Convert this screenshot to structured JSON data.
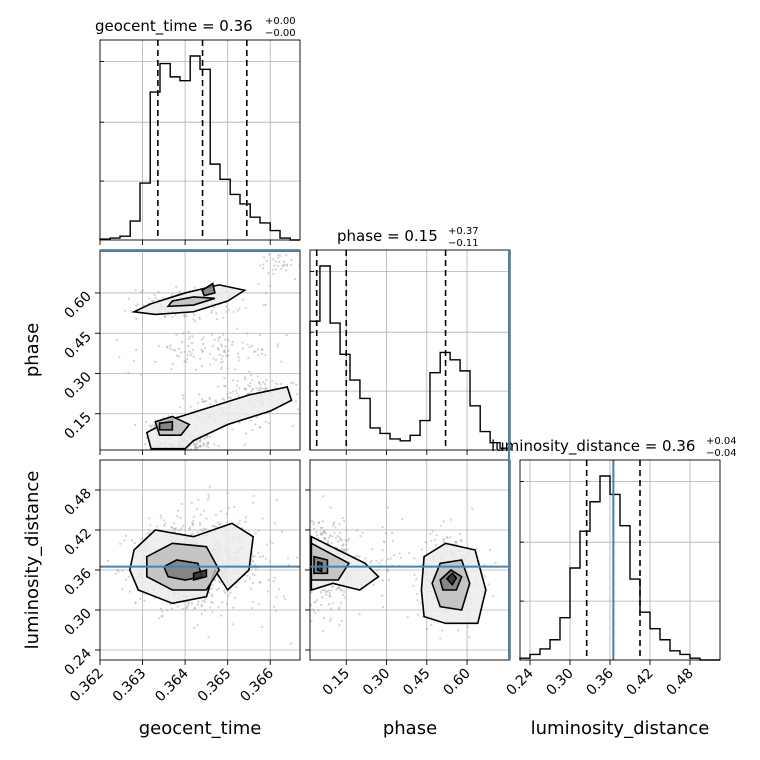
{
  "chart_data": {
    "type": "corner",
    "colors": {
      "truth": "#4682b4",
      "line": "#000000",
      "grid": "#b0b0b0"
    },
    "parameters": [
      {
        "name": "geocent_time",
        "label": "geocent_time",
        "median": "0.36",
        "err_plus": "+0.00",
        "err_minus": "−0.00",
        "range": [
          0.362,
          0.3667
        ]
      },
      {
        "name": "phase",
        "label": "phase",
        "median": "0.15",
        "err_plus": "+0.37",
        "err_minus": "−0.11",
        "range": [
          0.015,
          0.76
        ]
      },
      {
        "name": "luminosity_distance",
        "label": "luminosity_distance",
        "median": "0.36",
        "err_plus": "+0.04",
        "err_minus": "−0.04",
        "range": [
          0.225,
          0.525
        ],
        "truth": 0.365
      }
    ],
    "titles": [
      {
        "param": "geocent_time",
        "main": "geocent_time = 0.36",
        "sup": "+0.00",
        "sub": "−0.00"
      },
      {
        "param": "phase",
        "main": "phase = 0.15",
        "sup": "+0.37",
        "sub": "−0.11"
      },
      {
        "param": "luminosity_distance",
        "main": "luminosity_distance = 0.36",
        "sup": "+0.04",
        "sub": "−0.04"
      }
    ],
    "ticks": {
      "geocent_time": {
        "values": [
          0.362,
          0.363,
          0.364,
          0.365,
          0.366
        ],
        "labels": [
          "0.362",
          "0.363",
          "0.364",
          "0.365",
          "0.366"
        ]
      },
      "phase": {
        "values": [
          0.15,
          0.3,
          0.45,
          0.6
        ],
        "labels": [
          "0.15",
          "0.30",
          "0.45",
          "0.60"
        ]
      },
      "luminosity_distance": {
        "values": [
          0.24,
          0.3,
          0.36,
          0.42,
          0.48
        ],
        "labels": [
          "0.24",
          "0.30",
          "0.36",
          "0.42",
          "0.48"
        ]
      }
    },
    "histograms": [
      {
        "param": "geocent_time",
        "bin_edges": [
          0.362,
          0.36224,
          0.36247,
          0.36271,
          0.36294,
          0.36318,
          0.36341,
          0.36365,
          0.36388,
          0.36412,
          0.36435,
          0.36459,
          0.36482,
          0.36506,
          0.36529,
          0.36553,
          0.36576,
          0.366,
          0.36623,
          0.36647,
          0.3667
        ],
        "counts": [
          0.5,
          1,
          2,
          10,
          30,
          78,
          93,
          86,
          84,
          97,
          90,
          40,
          32,
          24,
          19,
          12,
          9,
          5,
          1,
          0
        ],
        "quantiles": [
          0.36336,
          0.36441,
          0.36545
        ]
      },
      {
        "param": "phase",
        "bin_edges": [
          0.015,
          0.052,
          0.09,
          0.127,
          0.164,
          0.201,
          0.239,
          0.276,
          0.313,
          0.351,
          0.388,
          0.425,
          0.462,
          0.5,
          0.537,
          0.574,
          0.611,
          0.649,
          0.686,
          0.723,
          0.76
        ],
        "counts": [
          70,
          100,
          69,
          52,
          38,
          28,
          12,
          9,
          6,
          5,
          8,
          16,
          42,
          53,
          49,
          43,
          24,
          10,
          4,
          1
        ],
        "quantiles": [
          0.04,
          0.15,
          0.52
        ]
      },
      {
        "param": "luminosity_distance",
        "bin_edges": [
          0.225,
          0.24,
          0.255,
          0.27,
          0.285,
          0.3,
          0.315,
          0.33,
          0.345,
          0.36,
          0.375,
          0.39,
          0.405,
          0.42,
          0.435,
          0.45,
          0.465,
          0.48,
          0.495,
          0.51,
          0.525
        ],
        "counts": [
          1,
          3,
          6,
          11,
          23,
          50,
          70,
          86,
          100,
          90,
          73,
          44,
          26,
          17,
          11,
          5,
          3,
          1,
          0,
          0
        ],
        "quantiles": [
          0.325,
          0.365,
          0.405
        ]
      }
    ],
    "scatter_2d": [
      {
        "x": "geocent_time",
        "y": "phase",
        "samples": [
          {
            "center": [
              0.36355,
              0.1
            ],
            "spread": [
              0.00018,
              0.018
            ],
            "n": 150
          },
          {
            "center": [
              0.36395,
              0.035
            ],
            "spread": [
              0.00035,
              0.025
            ],
            "n": 170
          },
          {
            "center": [
              0.36485,
              0.15
            ],
            "spread": [
              0.0006,
              0.04
            ],
            "n": 120
          },
          {
            "center": [
              0.36575,
              0.23
            ],
            "spread": [
              0.0005,
              0.03
            ],
            "n": 90
          },
          {
            "center": [
              0.3641,
              0.56
            ],
            "spread": [
              0.0006,
              0.03
            ],
            "n": 130
          },
          {
            "center": [
              0.36455,
              0.38
            ],
            "spread": [
              0.0009,
              0.04
            ],
            "n": 110
          },
          {
            "center": [
              0.3662,
              0.7
            ],
            "spread": [
              0.0003,
              0.03
            ],
            "n": 40
          }
        ],
        "contours": [
          [
            [
              0.3632,
              0.02
            ],
            [
              0.364,
              0.02
            ],
            [
              0.3642,
              0.05
            ],
            [
              0.365,
              0.11
            ],
            [
              0.366,
              0.16
            ],
            [
              0.3665,
              0.2
            ],
            [
              0.3664,
              0.25
            ],
            [
              0.3655,
              0.22
            ],
            [
              0.3645,
              0.17
            ],
            [
              0.3637,
              0.13
            ],
            [
              0.3631,
              0.08
            ]
          ],
          [
            [
              0.3634,
              0.07
            ],
            [
              0.3639,
              0.07
            ],
            [
              0.3641,
              0.11
            ],
            [
              0.3637,
              0.14
            ],
            [
              0.3633,
              0.12
            ]
          ],
          [
            [
              0.3634,
              0.09
            ],
            [
              0.3637,
              0.09
            ],
            [
              0.3637,
              0.12
            ],
            [
              0.3634,
              0.115
            ]
          ],
          [
            [
              0.3633,
              0.52
            ],
            [
              0.3642,
              0.53
            ],
            [
              0.365,
              0.57
            ],
            [
              0.3654,
              0.61
            ],
            [
              0.3648,
              0.63
            ],
            [
              0.364,
              0.6
            ],
            [
              0.3632,
              0.56
            ],
            [
              0.3628,
              0.53
            ]
          ],
          [
            [
              0.3636,
              0.55
            ],
            [
              0.3642,
              0.555
            ],
            [
              0.3647,
              0.58
            ],
            [
              0.3642,
              0.585
            ],
            [
              0.3637,
              0.57
            ]
          ],
          [
            [
              0.36445,
              0.59
            ],
            [
              0.3647,
              0.6
            ],
            [
              0.36465,
              0.635
            ],
            [
              0.3644,
              0.61
            ]
          ]
        ]
      },
      {
        "x": "geocent_time",
        "y": "luminosity_distance",
        "samples": [
          {
            "center": [
              0.36375,
              0.365
            ],
            "spread": [
              0.0005,
              0.035
            ],
            "n": 350
          },
          {
            "center": [
              0.36445,
              0.385
            ],
            "spread": [
              0.0005,
              0.035
            ],
            "n": 300
          },
          {
            "center": [
              0.36525,
              0.365
            ],
            "spread": [
              0.0006,
              0.04
            ],
            "n": 150
          }
        ],
        "contours": [
          [
            [
              0.3628,
              0.39
            ],
            [
              0.3633,
              0.42
            ],
            [
              0.3642,
              0.41
            ],
            [
              0.3651,
              0.43
            ],
            [
              0.3656,
              0.41
            ],
            [
              0.3655,
              0.36
            ],
            [
              0.365,
              0.33
            ],
            [
              0.3647,
              0.36
            ],
            [
              0.3645,
              0.32
            ],
            [
              0.3637,
              0.31
            ],
            [
              0.3629,
              0.33
            ],
            [
              0.3627,
              0.36
            ]
          ],
          [
            [
              0.3631,
              0.38
            ],
            [
              0.3637,
              0.4
            ],
            [
              0.3645,
              0.395
            ],
            [
              0.3648,
              0.36
            ],
            [
              0.3645,
              0.33
            ],
            [
              0.3637,
              0.33
            ],
            [
              0.3631,
              0.35
            ]
          ],
          [
            [
              0.3635,
              0.365
            ],
            [
              0.3638,
              0.375
            ],
            [
              0.3643,
              0.37
            ],
            [
              0.3644,
              0.35
            ],
            [
              0.364,
              0.345
            ],
            [
              0.3636,
              0.35
            ]
          ],
          [
            [
              0.3642,
              0.345
            ],
            [
              0.3645,
              0.35
            ],
            [
              0.3645,
              0.36
            ],
            [
              0.3642,
              0.355
            ]
          ]
        ]
      },
      {
        "x": "phase",
        "y": "luminosity_distance",
        "samples": [
          {
            "center": [
              0.06,
              0.37
            ],
            "spread": [
              0.05,
              0.035
            ],
            "n": 400
          },
          {
            "center": [
              0.54,
              0.35
            ],
            "spread": [
              0.06,
              0.035
            ],
            "n": 300
          },
          {
            "center": [
              0.25,
              0.37
            ],
            "spread": [
              0.08,
              0.03
            ],
            "n": 60
          }
        ],
        "contours": [
          [
            [
              0.02,
              0.41
            ],
            [
              0.12,
              0.39
            ],
            [
              0.22,
              0.37
            ],
            [
              0.27,
              0.35
            ],
            [
              0.2,
              0.33
            ],
            [
              0.1,
              0.34
            ],
            [
              0.02,
              0.33
            ]
          ],
          [
            [
              0.02,
              0.4
            ],
            [
              0.09,
              0.385
            ],
            [
              0.16,
              0.37
            ],
            [
              0.12,
              0.345
            ],
            [
              0.02,
              0.345
            ]
          ],
          [
            [
              0.03,
              0.38
            ],
            [
              0.08,
              0.375
            ],
            [
              0.08,
              0.355
            ],
            [
              0.03,
              0.355
            ]
          ],
          [
            [
              0.045,
              0.372
            ],
            [
              0.06,
              0.37
            ],
            [
              0.058,
              0.358
            ],
            [
              0.043,
              0.36
            ]
          ],
          [
            [
              0.43,
              0.33
            ],
            [
              0.44,
              0.38
            ],
            [
              0.52,
              0.4
            ],
            [
              0.63,
              0.39
            ],
            [
              0.67,
              0.33
            ],
            [
              0.64,
              0.28
            ],
            [
              0.52,
              0.28
            ],
            [
              0.44,
              0.29
            ]
          ],
          [
            [
              0.47,
              0.34
            ],
            [
              0.5,
              0.37
            ],
            [
              0.58,
              0.375
            ],
            [
              0.61,
              0.34
            ],
            [
              0.58,
              0.3
            ],
            [
              0.5,
              0.305
            ]
          ],
          [
            [
              0.5,
              0.345
            ],
            [
              0.54,
              0.36
            ],
            [
              0.58,
              0.35
            ],
            [
              0.56,
              0.33
            ],
            [
              0.51,
              0.33
            ]
          ],
          [
            [
              0.525,
              0.347
            ],
            [
              0.545,
              0.355
            ],
            [
              0.56,
              0.348
            ],
            [
              0.545,
              0.338
            ]
          ]
        ]
      }
    ],
    "xlabels": [
      "geocent_time",
      "phase",
      "luminosity_distance"
    ],
    "ylabels": [
      "phase",
      "luminosity_distance"
    ],
    "grid": true
  }
}
